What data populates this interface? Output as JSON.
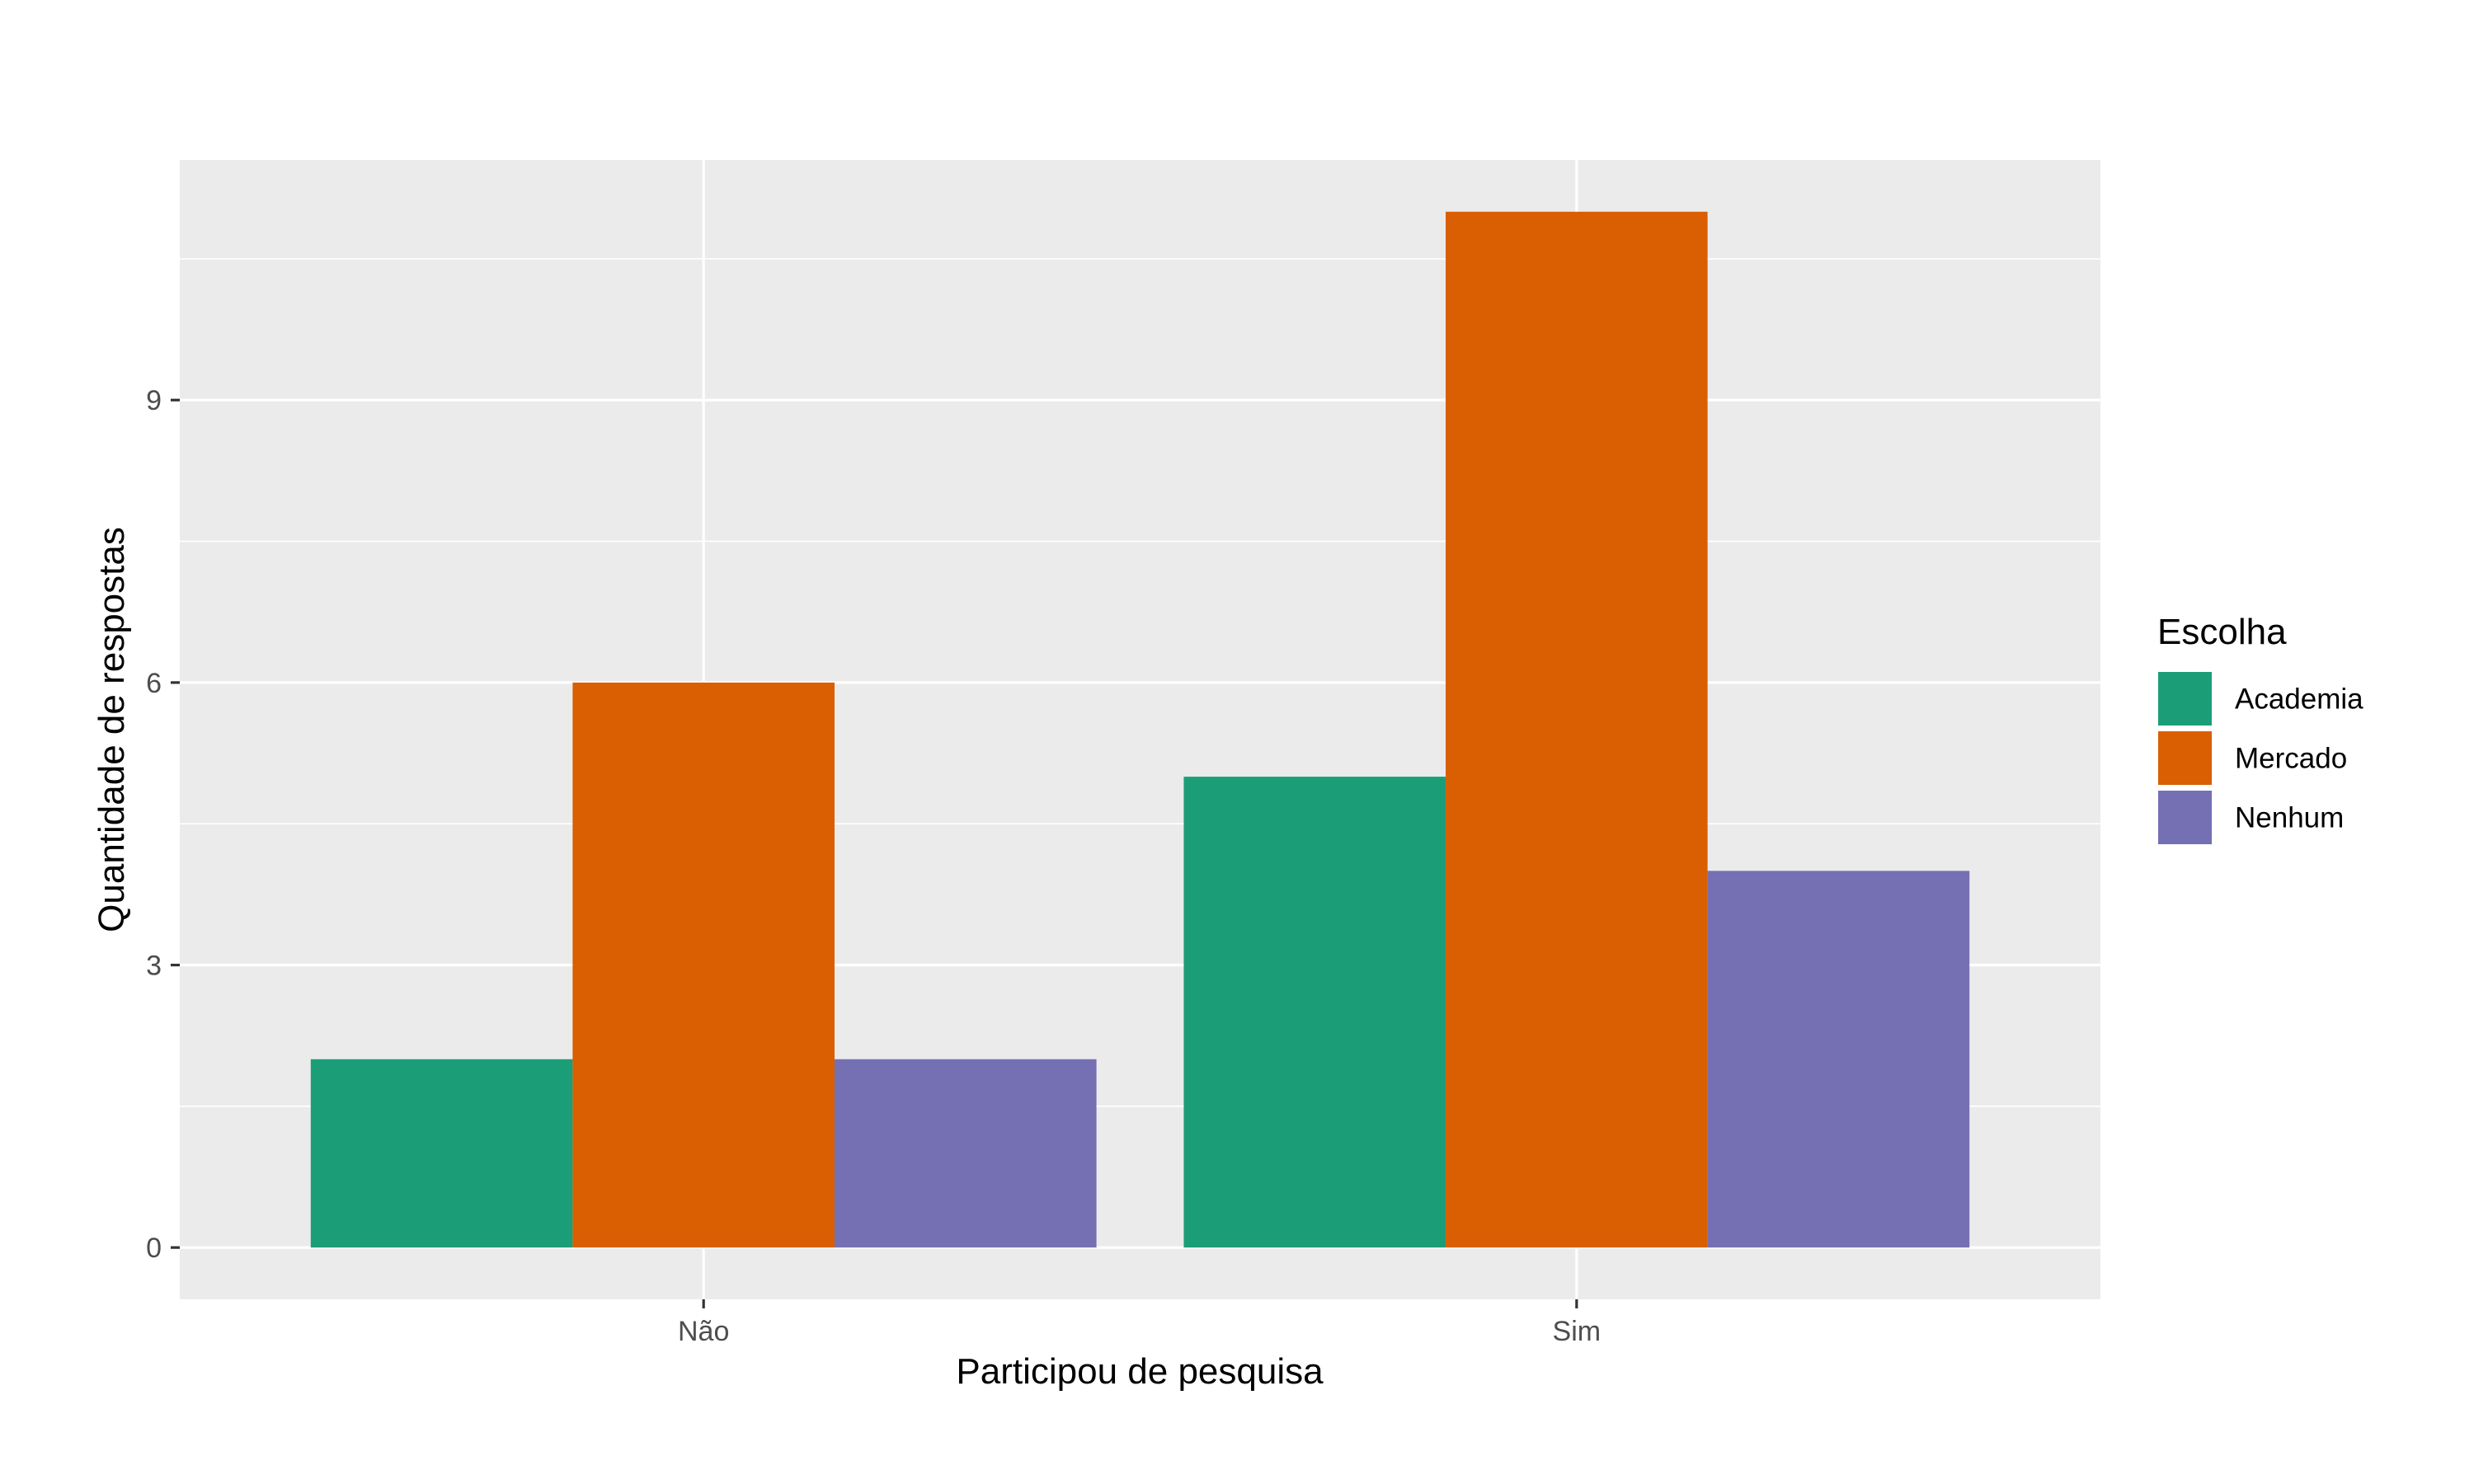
{
  "chart_data": {
    "type": "bar",
    "title": "",
    "xlabel": "Participou de pesquisa",
    "ylabel": "Quantidade de respostas",
    "categories": [
      "Não",
      "Sim"
    ],
    "series": [
      {
        "name": "Academia",
        "color": "#1B9E77",
        "values": [
          2,
          5
        ]
      },
      {
        "name": "Mercado",
        "color": "#D95F02",
        "values": [
          6,
          11
        ]
      },
      {
        "name": "Nenhum",
        "color": "#7570B3",
        "values": [
          2,
          4
        ]
      }
    ],
    "ylim": [
      -0.55,
      11.55
    ],
    "yticks": [
      0,
      3,
      6,
      9
    ],
    "yticks_labels": [
      "0",
      "3",
      "6",
      "9"
    ],
    "grid": true,
    "legend": {
      "title": "Escolha",
      "position": "right"
    },
    "colors": {
      "panel_background": "#EBEBEB",
      "grid": "#FFFFFF",
      "axis_text": "#4D4D4D"
    }
  }
}
